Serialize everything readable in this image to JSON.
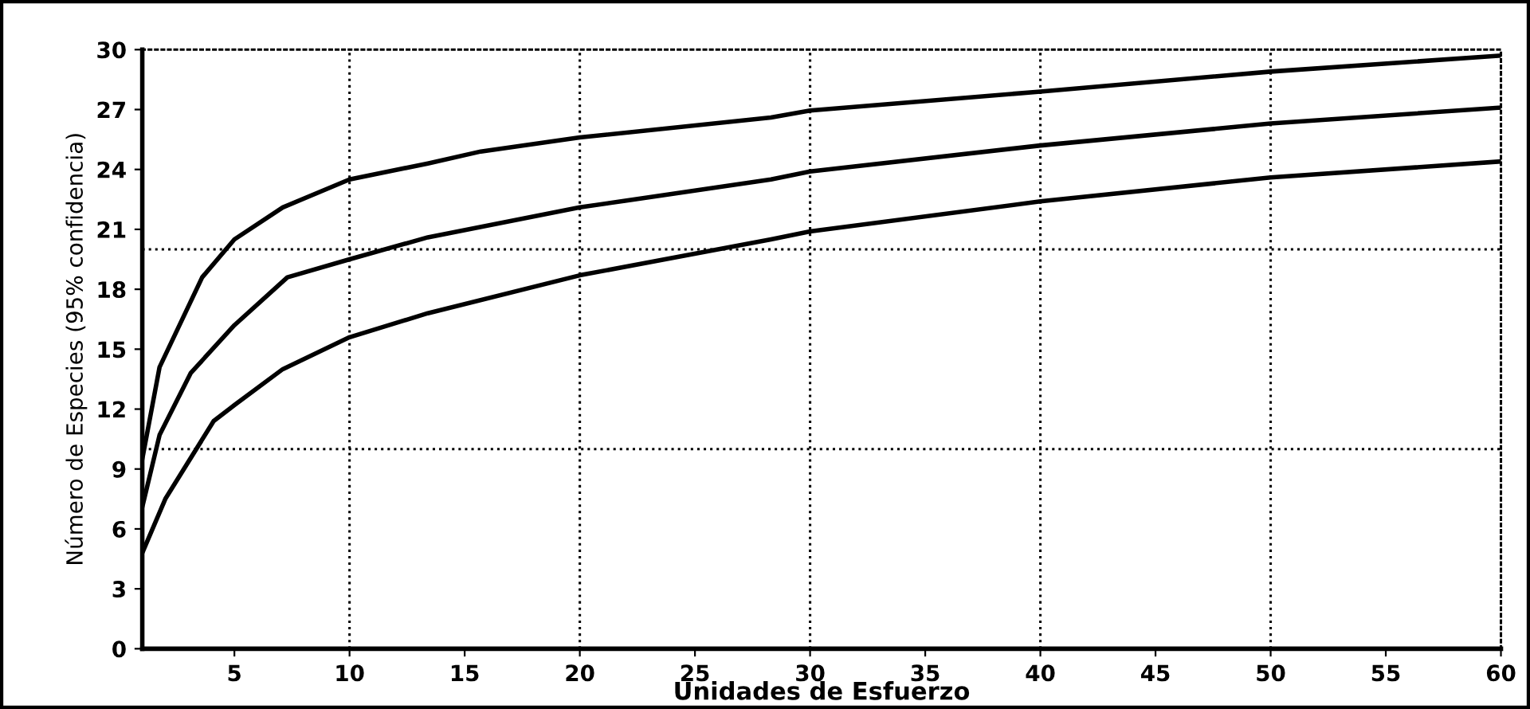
{
  "chart_data": {
    "type": "line",
    "xlabel": "Unidades de Esfuerzo",
    "ylabel": "Número de Especies (95% confidencia)",
    "xlim": [
      1,
      60
    ],
    "ylim": [
      0,
      30
    ],
    "xticks": [
      5,
      10,
      15,
      20,
      25,
      30,
      35,
      40,
      45,
      50,
      55,
      60
    ],
    "yticks": [
      0,
      3,
      6,
      9,
      12,
      15,
      18,
      21,
      24,
      27,
      30
    ],
    "grid": false,
    "legend": false,
    "marker": "none",
    "line_style": "solid",
    "ref_lines": [
      {
        "axis": "x",
        "value": 10,
        "color": "#000000",
        "line_style": "dotted"
      },
      {
        "axis": "x",
        "value": 20,
        "color": "#000000",
        "line_style": "dotted"
      },
      {
        "axis": "x",
        "value": 30,
        "color": "#000000",
        "line_style": "dotted"
      },
      {
        "axis": "x",
        "value": 40,
        "color": "#000000",
        "line_style": "dotted"
      },
      {
        "axis": "x",
        "value": 50,
        "color": "#000000",
        "line_style": "dotted"
      },
      {
        "axis": "y",
        "value": 10,
        "color": "#000000",
        "line_style": "dotted"
      },
      {
        "axis": "y",
        "value": 20,
        "color": "#000000",
        "line_style": "dotted"
      }
    ],
    "series": [
      {
        "color": "#000000",
        "x": [
          1,
          1.75,
          3.6,
          5,
          7.1,
          10,
          13.4,
          15.7,
          20,
          28.3,
          30,
          40,
          50,
          60
        ],
        "values": [
          9.5,
          14.1,
          18.6,
          20.5,
          22.1,
          23.5,
          24.3,
          24.9,
          25.6,
          26.6,
          26.95,
          27.9,
          28.9,
          29.7
        ]
      },
      {
        "color": "#000000",
        "x": [
          1,
          1.75,
          3.1,
          5,
          7.3,
          10,
          13.4,
          20,
          28.3,
          30,
          40,
          50,
          60
        ],
        "values": [
          7.1,
          10.7,
          13.8,
          16.2,
          18.6,
          19.5,
          20.6,
          22.1,
          23.5,
          23.9,
          25.2,
          26.3,
          27.1
        ]
      },
      {
        "color": "#000000",
        "x": [
          1,
          2,
          4.1,
          5,
          7.1,
          10,
          13.4,
          20,
          28.3,
          30,
          40,
          50,
          60
        ],
        "values": [
          4.8,
          7.5,
          11.4,
          12.2,
          14.0,
          15.6,
          16.8,
          18.7,
          20.5,
          20.9,
          22.4,
          23.6,
          24.4
        ]
      }
    ]
  }
}
